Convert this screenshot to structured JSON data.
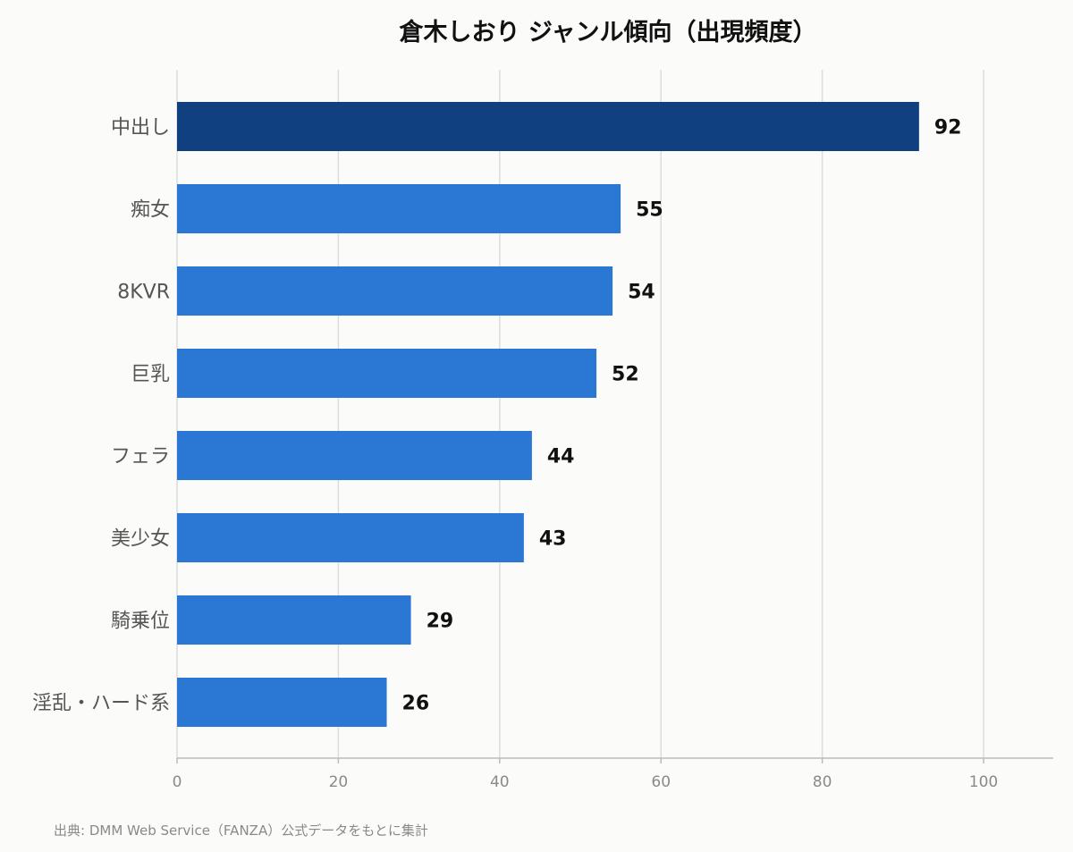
{
  "chart_data": {
    "type": "bar",
    "orientation": "horizontal",
    "title": "倉木しおり ジャンル傾向（出現頻度）",
    "categories": [
      "中出し",
      "痴女",
      "8KVR",
      "巨乳",
      "フェラ",
      "美少女",
      "騎乗位",
      "淫乱・ハード系"
    ],
    "values": [
      92,
      55,
      54,
      52,
      44,
      43,
      29,
      26
    ],
    "xlim": [
      0,
      100
    ],
    "xticks": [
      0,
      20,
      40,
      60,
      80,
      100
    ],
    "grid": "vertical",
    "highlight_index": 0,
    "colors": {
      "bar": "#2a78d4",
      "bar_highlight": "#10407f",
      "grid": "#dddddd",
      "axis": "#bbbbbb",
      "background": "#fbfbf9"
    },
    "source": "出典: DMM Web Service（FANZA）公式データをもとに集計"
  }
}
